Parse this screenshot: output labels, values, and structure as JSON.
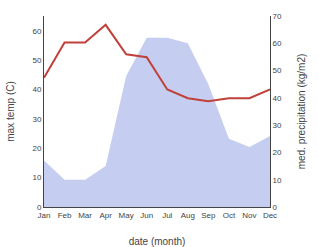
{
  "chart_data": {
    "type": "line",
    "categories": [
      "Jan",
      "Feb",
      "Mar",
      "Apr",
      "May",
      "Jun",
      "Jul",
      "Aug",
      "Sep",
      "Oct",
      "Nov",
      "Dec"
    ],
    "xlabel": "date (month)",
    "ylabel": "max temp (C)",
    "y2label": "med. precipitation (kg/m2)",
    "series": [
      {
        "type": "area",
        "axis": "y2",
        "color": "#c5cef0",
        "values": [
          17,
          10,
          10,
          15,
          48,
          62,
          62,
          60,
          45,
          25,
          22,
          26
        ]
      },
      {
        "type": "line",
        "color": "#c0403a",
        "values": [
          44,
          56,
          56,
          62,
          52,
          51,
          40,
          37,
          36,
          37,
          37,
          40
        ]
      }
    ],
    "ylim": [
      0,
      65
    ],
    "yticks": [
      0,
      10,
      20,
      30,
      40,
      50,
      60
    ],
    "y2lim": [
      0,
      70
    ],
    "y2ticks": [
      0,
      10,
      20,
      30,
      40,
      50,
      60,
      70
    ],
    "grid": false
  }
}
